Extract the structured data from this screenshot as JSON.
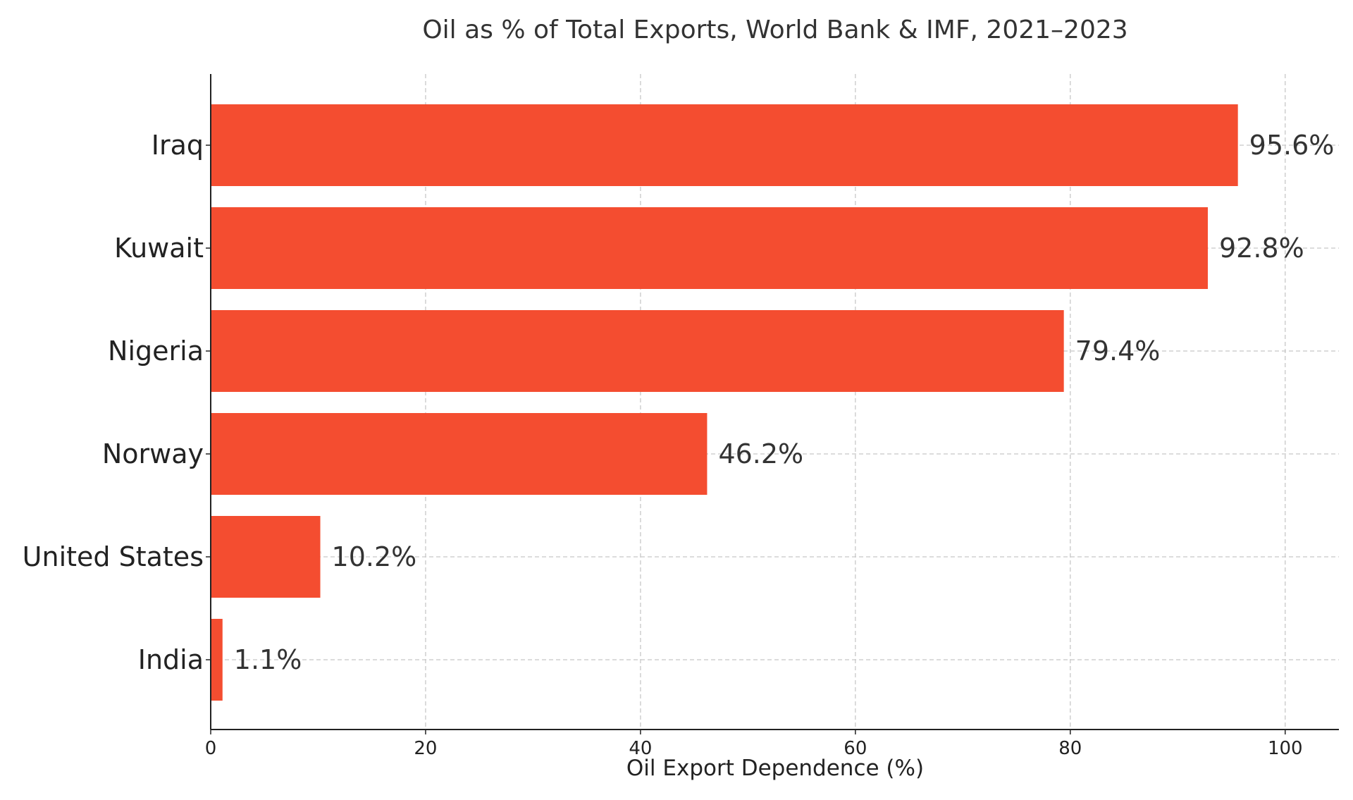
{
  "chart_data": {
    "type": "bar",
    "orientation": "horizontal",
    "title": "Oil as % of Total Exports, World Bank & IMF, 2021–2023",
    "xlabel": "Oil Export Dependence (%)",
    "ylabel": "",
    "categories": [
      "Iraq",
      "Kuwait",
      "Nigeria",
      "Norway",
      "United States",
      "India"
    ],
    "values": [
      95.6,
      92.8,
      79.4,
      46.2,
      10.2,
      1.1
    ],
    "value_labels": [
      "95.6%",
      "92.8%",
      "79.4%",
      "46.2%",
      "10.2%",
      "1.1%"
    ],
    "xlim": [
      0,
      105
    ],
    "xticks": [
      0,
      20,
      40,
      60,
      80,
      100
    ],
    "xtick_labels": [
      "0",
      "20",
      "40",
      "60",
      "80",
      "100"
    ],
    "grid": true,
    "bar_color": "#f44d30"
  }
}
